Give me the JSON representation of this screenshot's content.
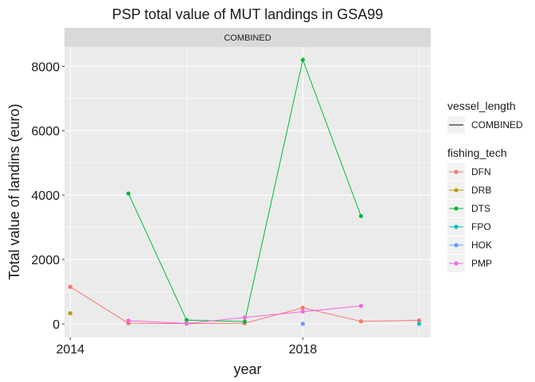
{
  "chart_data": {
    "type": "line",
    "title": "PSP total value of MUT landings in GSA99",
    "facet_label": "COMBINED",
    "xlabel": "year",
    "ylabel": "Total value of landins (euro)",
    "xlim": [
      2013.9,
      2020.2
    ],
    "ylim": [
      -420,
      8600
    ],
    "x_ticks": [
      2014,
      2018
    ],
    "y_ticks": [
      0,
      2000,
      4000,
      6000,
      8000
    ],
    "grid": true,
    "legend_position": "right",
    "legends": [
      {
        "title": "vessel_length",
        "entries": [
          {
            "label": "COMBINED",
            "kind": "line",
            "color": "#000000"
          }
        ]
      },
      {
        "title": "fishing_tech",
        "entries": [
          {
            "label": "DFN",
            "kind": "point-line",
            "color": "#F8766D"
          },
          {
            "label": "DRB",
            "kind": "point-line",
            "color": "#B79F00"
          },
          {
            "label": "DTS",
            "kind": "point-line",
            "color": "#00BA38"
          },
          {
            "label": "FPO",
            "kind": "point-line",
            "color": "#00BFC4"
          },
          {
            "label": "HOK",
            "kind": "point-line",
            "color": "#619CFF"
          },
          {
            "label": "PMP",
            "kind": "point-line",
            "color": "#F564E3"
          }
        ]
      }
    ],
    "series": [
      {
        "name": "DFN",
        "color": "#F8766D",
        "x": [
          2014,
          2015,
          2016,
          2017,
          2018,
          2019,
          2020
        ],
        "y": [
          1150,
          20,
          10,
          20,
          500,
          80,
          110
        ]
      },
      {
        "name": "DRB",
        "color": "#B79F00",
        "x": [
          2014
        ],
        "y": [
          330
        ]
      },
      {
        "name": "DTS",
        "color": "#00BA38",
        "x": [
          2015,
          2016,
          2017,
          2018,
          2019
        ],
        "y": [
          4050,
          120,
          70,
          8200,
          3350
        ]
      },
      {
        "name": "FPO",
        "color": "#00BFC4",
        "x": [
          2020
        ],
        "y": [
          5
        ]
      },
      {
        "name": "HOK",
        "color": "#619CFF",
        "x": [
          2018
        ],
        "y": [
          5
        ]
      },
      {
        "name": "PMP",
        "color": "#F564E3",
        "x": [
          2015,
          2016,
          2017,
          2018,
          2019
        ],
        "y": [
          100,
          15,
          200,
          380,
          560
        ]
      }
    ]
  }
}
